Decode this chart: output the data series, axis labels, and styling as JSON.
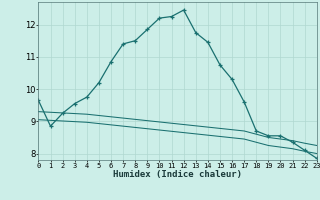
{
  "bg_color": "#cceee8",
  "grid_color": "#b0d8d0",
  "line_color": "#1a7070",
  "xlabel": "Humidex (Indice chaleur)",
  "xlim": [
    0,
    23
  ],
  "ylim": [
    7.8,
    12.7
  ],
  "yticks": [
    8,
    9,
    10,
    11,
    12
  ],
  "xticks": [
    0,
    1,
    2,
    3,
    4,
    5,
    6,
    7,
    8,
    9,
    10,
    11,
    12,
    13,
    14,
    15,
    16,
    17,
    18,
    19,
    20,
    21,
    22,
    23
  ],
  "series1_x": [
    0,
    1,
    2,
    3,
    4,
    5,
    6,
    7,
    8,
    9,
    10,
    11,
    12,
    13,
    14,
    15,
    16,
    17,
    18,
    19,
    20,
    21,
    22,
    23
  ],
  "series1_y": [
    9.65,
    8.85,
    9.25,
    9.55,
    9.75,
    10.2,
    10.85,
    11.4,
    11.5,
    11.85,
    12.2,
    12.25,
    12.45,
    11.75,
    11.45,
    10.75,
    10.3,
    9.6,
    8.7,
    8.55,
    8.55,
    8.35,
    8.1,
    7.85
  ],
  "series2_x": [
    0,
    1,
    2,
    3,
    4,
    5,
    6,
    7,
    8,
    9,
    10,
    11,
    12,
    13,
    14,
    15,
    16,
    17,
    18,
    19,
    20,
    21,
    22,
    23
  ],
  "series2_y": [
    9.3,
    9.28,
    9.26,
    9.24,
    9.22,
    9.18,
    9.14,
    9.1,
    9.06,
    9.02,
    8.98,
    8.94,
    8.9,
    8.86,
    8.82,
    8.78,
    8.74,
    8.7,
    8.6,
    8.5,
    8.45,
    8.4,
    8.32,
    8.25
  ],
  "series3_x": [
    0,
    1,
    2,
    3,
    4,
    5,
    6,
    7,
    8,
    9,
    10,
    11,
    12,
    13,
    14,
    15,
    16,
    17,
    18,
    19,
    20,
    21,
    22,
    23
  ],
  "series3_y": [
    9.05,
    9.03,
    9.01,
    8.99,
    8.97,
    8.93,
    8.89,
    8.85,
    8.81,
    8.77,
    8.73,
    8.69,
    8.65,
    8.61,
    8.57,
    8.53,
    8.49,
    8.45,
    8.35,
    8.25,
    8.2,
    8.15,
    8.07,
    8.0
  ]
}
